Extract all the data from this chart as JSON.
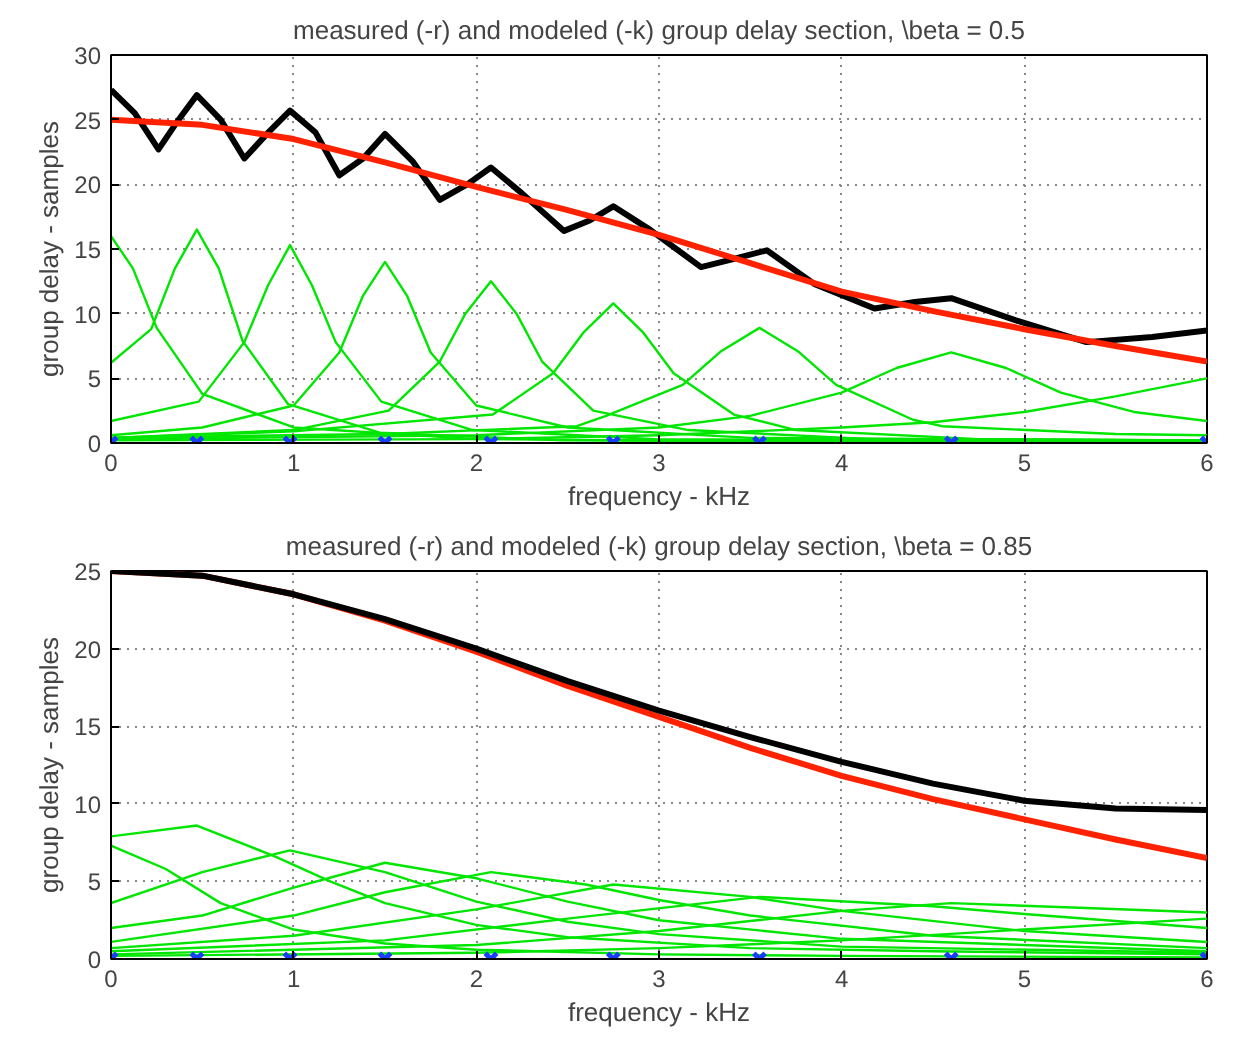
{
  "chart_data": [
    {
      "type": "line",
      "title": "measured (-r) and modeled (-k) group delay section, \\beta = 0.5",
      "xlabel": "frequency - kHz",
      "ylabel": "group delay - samples",
      "xlim": [
        0,
        6
      ],
      "ylim": [
        0,
        30
      ],
      "xticks": [
        0,
        1,
        2,
        3,
        4,
        5,
        6
      ],
      "yticks": [
        0,
        5,
        10,
        15,
        20,
        25,
        30
      ],
      "grid": true,
      "line_style": "solid",
      "series": [
        {
          "color": "#000000",
          "x": [
            0,
            0.13,
            0.26,
            0.37,
            0.47,
            0.6,
            0.73,
            0.86,
            0.98,
            1.12,
            1.25,
            1.38,
            1.5,
            1.65,
            1.8,
            1.95,
            2.08,
            2.25,
            2.48,
            2.62,
            2.75,
            2.95,
            3.23,
            3.4,
            3.59,
            3.85,
            4.18,
            4.4,
            4.6,
            4.95,
            5.34,
            5.7,
            6
          ],
          "values": [
            27.3,
            25.5,
            22.7,
            25,
            26.9,
            25,
            22,
            24,
            25.7,
            24,
            20.7,
            22,
            23.9,
            21.8,
            18.8,
            20,
            21.3,
            19.3,
            16.4,
            17.2,
            18.3,
            16.5,
            13.6,
            14.2,
            14.9,
            12.3,
            10.4,
            10.9,
            11.2,
            9.5,
            7.8,
            8.2,
            8.7
          ]
        },
        {
          "color": "#ff2200",
          "x": [
            0,
            0.5,
            1,
            1.5,
            2,
            2.5,
            3,
            3.5,
            4,
            4.5,
            5,
            5.5,
            6
          ],
          "values": [
            25,
            24.6,
            23.5,
            21.7,
            19.8,
            18,
            16.1,
            13.9,
            11.7,
            10.2,
            8.8,
            7.5,
            6.3
          ]
        },
        {
          "color": "#00e600",
          "x": [
            0,
            0.12,
            0.25,
            0.5,
            1,
            2,
            3,
            4,
            6
          ],
          "values": [
            16,
            13.5,
            8.9,
            3.8,
            1.2,
            0.3,
            0.2,
            0.1,
            0.1
          ]
        },
        {
          "color": "#00e600",
          "x": [
            0,
            0.22,
            0.35,
            0.47,
            0.59,
            0.72,
            0.97,
            1.47,
            2.47,
            4,
            6
          ],
          "values": [
            6.2,
            8.8,
            13.5,
            16.5,
            13.5,
            7.9,
            3,
            0.8,
            0.2,
            0.1,
            0.1
          ]
        },
        {
          "color": "#00e600",
          "x": [
            0,
            0.48,
            0.73,
            0.86,
            0.98,
            1.1,
            1.23,
            1.48,
            1.98,
            2.98,
            6
          ],
          "values": [
            1.7,
            3.2,
            7.8,
            12.2,
            15.3,
            12.2,
            7.8,
            3.2,
            1,
            0.3,
            0.1
          ]
        },
        {
          "color": "#00e600",
          "x": [
            0,
            0.5,
            1,
            1.25,
            1.38,
            1.5,
            1.62,
            1.75,
            2,
            2.5,
            3.5,
            6
          ],
          "values": [
            0.6,
            1.2,
            2.9,
            7,
            11.4,
            14,
            11.4,
            7,
            2.9,
            1.2,
            0.4,
            0.2
          ]
        },
        {
          "color": "#00e600",
          "x": [
            0,
            1,
            1.52,
            1.8,
            1.94,
            2.08,
            2.22,
            2.36,
            2.64,
            3.16,
            4.16,
            6
          ],
          "values": [
            0.4,
            1,
            2.5,
            6.3,
            10,
            12.5,
            10,
            6.3,
            2.5,
            1,
            0.3,
            0.2
          ]
        },
        {
          "color": "#00e600",
          "x": [
            0,
            1,
            2.09,
            2.42,
            2.59,
            2.75,
            2.91,
            3.08,
            3.41,
            3.75,
            4.75,
            6
          ],
          "values": [
            0.4,
            0.9,
            2.2,
            5.4,
            8.6,
            10.8,
            8.6,
            5.4,
            2.2,
            1,
            0.3,
            0.2
          ]
        },
        {
          "color": "#00e600",
          "x": [
            0,
            1.5,
            2.55,
            2.71,
            3.13,
            3.34,
            3.55,
            3.76,
            3.97,
            4.39,
            4.55,
            5.5,
            6
          ],
          "values": [
            0.4,
            0.7,
            1.3,
            2.1,
            4.5,
            7.1,
            8.9,
            7.1,
            4.5,
            1.8,
            1.3,
            0.7,
            0.6
          ]
        },
        {
          "color": "#00e600",
          "x": [
            0,
            2,
            3,
            3.5,
            4,
            4.3,
            4.6,
            4.9,
            5.2,
            5.6,
            6
          ],
          "values": [
            0.3,
            0.6,
            1.2,
            2.1,
            3.9,
            5.8,
            7,
            5.8,
            3.9,
            2.4,
            1.7
          ]
        },
        {
          "color": "#00e600",
          "x": [
            0,
            2,
            3,
            4,
            4.5,
            5,
            5.5,
            6
          ],
          "values": [
            0.2,
            0.3,
            0.6,
            1.2,
            1.6,
            2.4,
            3.6,
            5
          ]
        },
        {
          "type": "scatter",
          "marker": "cross",
          "color": "#1a3cff",
          "x": [
            0,
            0.47,
            0.98,
            1.5,
            2.08,
            2.75,
            3.55,
            4.6,
            6
          ],
          "values": [
            0,
            0,
            0,
            0,
            0,
            0,
            0,
            0,
            0
          ]
        }
      ]
    },
    {
      "type": "line",
      "title": "measured (-r) and modeled (-k) group delay section, \\beta = 0.85",
      "xlabel": "frequency - kHz",
      "ylabel": "group delay - samples",
      "xlim": [
        0,
        6
      ],
      "ylim": [
        0,
        25
      ],
      "xticks": [
        0,
        1,
        2,
        3,
        4,
        5,
        6
      ],
      "yticks": [
        0,
        5,
        10,
        15,
        20,
        25
      ],
      "grid": true,
      "line_style": "solid",
      "series": [
        {
          "color": "#ff2200",
          "x": [
            0,
            0.5,
            1,
            1.5,
            2,
            2.5,
            3,
            3.5,
            4,
            4.5,
            5,
            5.5,
            6
          ],
          "values": [
            25,
            24.7,
            23.5,
            21.8,
            19.8,
            17.6,
            15.6,
            13.6,
            11.8,
            10.3,
            9,
            7.7,
            6.5
          ]
        },
        {
          "color": "#000000",
          "x": [
            0,
            0.5,
            1,
            1.5,
            2,
            2.5,
            3,
            3.5,
            4,
            4.5,
            5,
            5.5,
            6
          ],
          "values": [
            25,
            24.7,
            23.5,
            21.9,
            20,
            17.9,
            16,
            14.3,
            12.7,
            11.3,
            10.2,
            9.7,
            9.6
          ]
        },
        {
          "color": "#00e600",
          "x": [
            0,
            0.3,
            0.6,
            1,
            1.5,
            2,
            3,
            4,
            6
          ],
          "values": [
            7.3,
            5.8,
            3.6,
            1.9,
            1,
            0.6,
            0.3,
            0.2,
            0.1
          ]
        },
        {
          "color": "#00e600",
          "x": [
            0,
            0.47,
            0.9,
            1.2,
            1.5,
            2,
            2.5,
            3.5,
            4.5,
            6
          ],
          "values": [
            7.9,
            8.6,
            6.6,
            5,
            3.6,
            2.2,
            1.4,
            0.7,
            0.5,
            0.3
          ]
        },
        {
          "color": "#00e600",
          "x": [
            0,
            0.5,
            0.98,
            1.5,
            2,
            2.5,
            3,
            4,
            6
          ],
          "values": [
            3.6,
            5.6,
            7,
            5.6,
            3.7,
            2.4,
            1.6,
            0.8,
            0.4
          ]
        },
        {
          "color": "#00e600",
          "x": [
            0,
            0.5,
            1,
            1.5,
            2,
            2.5,
            3,
            4,
            6
          ],
          "values": [
            2,
            2.8,
            4.6,
            6.2,
            5.2,
            3.7,
            2.5,
            1.3,
            0.5
          ]
        },
        {
          "color": "#00e600",
          "x": [
            0,
            1,
            1.5,
            2.08,
            2.6,
            3,
            3.5,
            4.5,
            6
          ],
          "values": [
            1.1,
            2.8,
            4.3,
            5.6,
            4.8,
            3.8,
            2.8,
            1.5,
            0.7
          ]
        },
        {
          "color": "#00e600",
          "x": [
            0,
            1,
            2,
            2.75,
            3.5,
            4,
            5,
            6
          ],
          "values": [
            0.7,
            1.5,
            3.2,
            4.8,
            4,
            3.1,
            1.8,
            1.1
          ]
        },
        {
          "color": "#00e600",
          "x": [
            0,
            1.5,
            2.5,
            3.55,
            4.5,
            5,
            6
          ],
          "values": [
            0.5,
            1.2,
            2.6,
            4,
            3.4,
            2.9,
            2
          ]
        },
        {
          "color": "#00e600",
          "x": [
            0,
            2,
            3,
            4,
            4.6,
            5.3,
            6
          ],
          "values": [
            0.3,
            0.9,
            1.8,
            3.1,
            3.6,
            3.3,
            3
          ]
        },
        {
          "color": "#00e600",
          "x": [
            0,
            2,
            3,
            4,
            5,
            6
          ],
          "values": [
            0.2,
            0.4,
            0.7,
            1.2,
            1.9,
            2.6
          ]
        },
        {
          "type": "scatter",
          "marker": "cross",
          "color": "#1a3cff",
          "x": [
            0,
            0.47,
            0.98,
            1.5,
            2.08,
            2.75,
            3.55,
            4.6,
            6
          ],
          "values": [
            0,
            0,
            0,
            0,
            0,
            0,
            0,
            0,
            0
          ]
        }
      ]
    }
  ]
}
